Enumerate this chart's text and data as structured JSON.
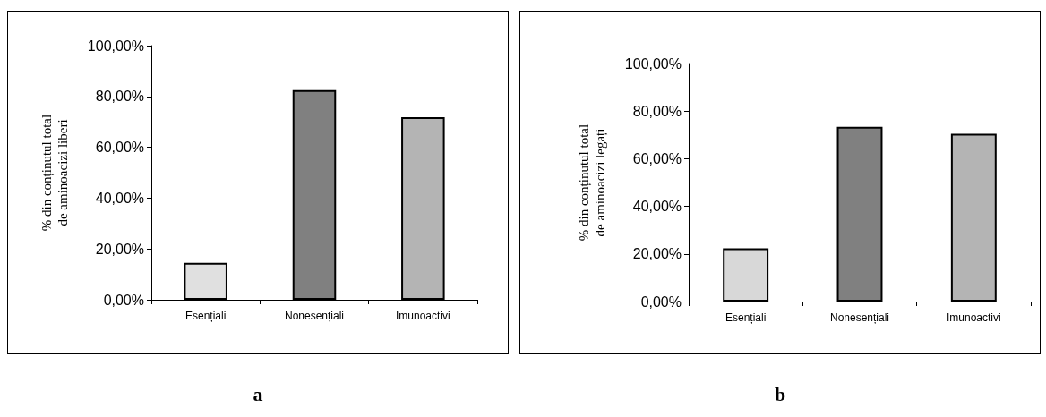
{
  "chart_data": [
    {
      "type": "bar",
      "title": "a",
      "ylabel": "% din conținutul total\nde aminoacizi liberi",
      "categories": [
        "Esențiali",
        "Nonesențiali",
        "Imunoactivi"
      ],
      "values": [
        14.5,
        82.5,
        71.8
      ],
      "colors": [
        "#e0e0e0",
        "#808080",
        "#b4b4b4"
      ],
      "ylim": [
        0,
        100
      ],
      "yticks": [
        {
          "value": 0,
          "label": "0,00%"
        },
        {
          "value": 20,
          "label": "20,00%"
        },
        {
          "value": 40,
          "label": "40,00%"
        },
        {
          "value": 60,
          "label": "60,00%"
        },
        {
          "value": 80,
          "label": "80,00%"
        },
        {
          "value": 100,
          "label": "100,00%"
        }
      ],
      "grid": false
    },
    {
      "type": "bar",
      "title": "b",
      "ylabel": "% din conținutul total\nde aminoacizi legați",
      "categories": [
        "Esențiali",
        "Nonesențiali",
        "Imunoactivi"
      ],
      "values": [
        22.4,
        73.4,
        70.5
      ],
      "colors": [
        "#d8d8d8",
        "#808080",
        "#b4b4b4"
      ],
      "ylim": [
        0,
        100
      ],
      "yticks": [
        {
          "value": 0,
          "label": "0,00%"
        },
        {
          "value": 20,
          "label": "20,00%"
        },
        {
          "value": 40,
          "label": "40,00%"
        },
        {
          "value": 60,
          "label": "60,00%"
        },
        {
          "value": 80,
          "label": "80,00%"
        },
        {
          "value": 100,
          "label": "100,00%"
        }
      ],
      "grid": false
    }
  ]
}
